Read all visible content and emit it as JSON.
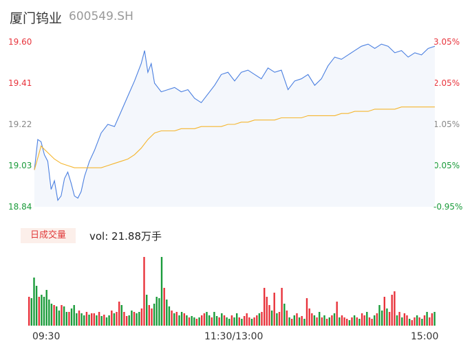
{
  "header": {
    "name": "厦门钨业",
    "code": "600549.SH"
  },
  "colors": {
    "up": "#e8333b",
    "down": "#1a9b3a",
    "price_line": "#4a7fe0",
    "avg_line": "#f5b52c",
    "fill": "#f4f7fc",
    "neutral": "#888888"
  },
  "volume_panel": {
    "badge": "日成交量",
    "readout": "vol: 21.88万手"
  },
  "chart_data": [
    {
      "type": "line",
      "title": "",
      "y_left_ticks": [
        "19.60",
        "19.41",
        "19.22",
        "19.03",
        "18.84"
      ],
      "y_right_ticks": [
        "3.05%",
        "2.05%",
        "1.05%",
        "0.05%",
        "-0.95%"
      ],
      "x_tick_labels": [
        "09:30",
        "11:30/13:00",
        "15:00"
      ],
      "ylim": [
        18.84,
        19.6
      ],
      "series": [
        {
          "name": "",
          "x": [
            0,
            2,
            4,
            6,
            8,
            10,
            12,
            14,
            16,
            18,
            20,
            22,
            24,
            26,
            28,
            30,
            33,
            36,
            40,
            44,
            48,
            52,
            56,
            60,
            64,
            66,
            68,
            70,
            72,
            76,
            80,
            84,
            88,
            92,
            96,
            100,
            104,
            108,
            112,
            116,
            120,
            124,
            128,
            132,
            136,
            140,
            144,
            148,
            152,
            156,
            160,
            164,
            168,
            172,
            176,
            180,
            184,
            188,
            192,
            196,
            200,
            204,
            208,
            212,
            216,
            220,
            224,
            228,
            232,
            236,
            240
          ],
          "values": [
            19.01,
            19.15,
            19.14,
            19.08,
            19.05,
            18.92,
            18.96,
            18.87,
            18.89,
            18.97,
            19.0,
            18.95,
            18.89,
            18.88,
            18.91,
            18.98,
            19.05,
            19.1,
            19.18,
            19.22,
            19.21,
            19.28,
            19.35,
            19.42,
            19.5,
            19.56,
            19.46,
            19.5,
            19.41,
            19.37,
            19.38,
            19.39,
            19.37,
            19.38,
            19.34,
            19.32,
            19.36,
            19.4,
            19.45,
            19.46,
            19.42,
            19.46,
            19.47,
            19.45,
            19.43,
            19.48,
            19.46,
            19.47,
            19.38,
            19.42,
            19.43,
            19.45,
            19.4,
            19.43,
            19.49,
            19.53,
            19.52,
            19.54,
            19.56,
            19.58,
            19.59,
            19.57,
            19.59,
            19.58,
            19.55,
            19.56,
            19.53,
            19.55,
            19.54,
            19.57,
            19.58
          ]
        },
        {
          "name": "",
          "x": [
            0,
            4,
            8,
            12,
            16,
            20,
            24,
            28,
            32,
            36,
            40,
            44,
            48,
            52,
            56,
            60,
            64,
            68,
            72,
            76,
            80,
            84,
            88,
            92,
            96,
            100,
            104,
            108,
            112,
            116,
            120,
            124,
            128,
            132,
            136,
            140,
            144,
            148,
            152,
            156,
            160,
            164,
            168,
            172,
            176,
            180,
            184,
            188,
            192,
            196,
            200,
            204,
            208,
            212,
            216,
            220,
            224,
            228,
            232,
            236,
            240
          ],
          "values": [
            19.01,
            19.12,
            19.09,
            19.06,
            19.04,
            19.03,
            19.02,
            19.02,
            19.02,
            19.02,
            19.02,
            19.03,
            19.04,
            19.05,
            19.06,
            19.08,
            19.11,
            19.15,
            19.18,
            19.19,
            19.19,
            19.19,
            19.2,
            19.2,
            19.2,
            19.21,
            19.21,
            19.21,
            19.21,
            19.22,
            19.22,
            19.23,
            19.23,
            19.24,
            19.24,
            19.24,
            19.24,
            19.25,
            19.25,
            19.25,
            19.25,
            19.26,
            19.26,
            19.26,
            19.26,
            19.26,
            19.27,
            19.27,
            19.28,
            19.28,
            19.28,
            19.29,
            19.29,
            19.29,
            19.29,
            19.3,
            19.3,
            19.3,
            19.3,
            19.3,
            19.3
          ]
        }
      ]
    },
    {
      "type": "bar",
      "title": "",
      "values": [
        42,
        40,
        70,
        58,
        42,
        45,
        42,
        52,
        38,
        32,
        30,
        28,
        22,
        30,
        28,
        20,
        20,
        25,
        30,
        18,
        22,
        18,
        15,
        20,
        16,
        18,
        18,
        15,
        20,
        14,
        16,
        12,
        15,
        22,
        18,
        20,
        35,
        30,
        20,
        14,
        15,
        22,
        20,
        18,
        20,
        25,
        100,
        45,
        30,
        25,
        32,
        42,
        40,
        100,
        55,
        38,
        28,
        22,
        18,
        20,
        15,
        20,
        18,
        15,
        12,
        14,
        12,
        10,
        12,
        15,
        18,
        20,
        15,
        12,
        20,
        14,
        12,
        18,
        15,
        12,
        10,
        15,
        12,
        18,
        12,
        10,
        14,
        18,
        12,
        10,
        12,
        15,
        18,
        20,
        55,
        42,
        30,
        22,
        48,
        18,
        20,
        55,
        32,
        22,
        12,
        10,
        15,
        18,
        12,
        14,
        10,
        40,
        25,
        18,
        15,
        12,
        20,
        12,
        15,
        10,
        12,
        15,
        18,
        35,
        12,
        15,
        12,
        10,
        8,
        12,
        15,
        12,
        10,
        18,
        15,
        20,
        12,
        10,
        15,
        18,
        30,
        22,
        42,
        25,
        20,
        45,
        50,
        15,
        20,
        12,
        18,
        15,
        10,
        8,
        12,
        15,
        12,
        10,
        15,
        20,
        12,
        18,
        20
      ],
      "directions": [
        1,
        0,
        0,
        0,
        1,
        0,
        0,
        0,
        0,
        0,
        1,
        0,
        0,
        1,
        0,
        0,
        1,
        0,
        0,
        0,
        1,
        0,
        0,
        1,
        0,
        1,
        1,
        0,
        1,
        0,
        1,
        0,
        0,
        1,
        0,
        1,
        1,
        0,
        1,
        1,
        0,
        0,
        1,
        0,
        0,
        1,
        1,
        0,
        1,
        1,
        0,
        0,
        0,
        0,
        1,
        0,
        0,
        1,
        0,
        1,
        0,
        0,
        1,
        0,
        1,
        0,
        0,
        1,
        0,
        1,
        1,
        0,
        0,
        1,
        0,
        0,
        1,
        0,
        1,
        0,
        0,
        1,
        0,
        0,
        1,
        0,
        1,
        1,
        1,
        0,
        1,
        1,
        0,
        1,
        1,
        1,
        1,
        0,
        1,
        0,
        1,
        1,
        0,
        1,
        0,
        1,
        0,
        1,
        0,
        1,
        0,
        1,
        1,
        1,
        0,
        1,
        0,
        1,
        0,
        1,
        0,
        1,
        0,
        1,
        0,
        1,
        1,
        1,
        0,
        1,
        0,
        1,
        0,
        1,
        1,
        0,
        1,
        1,
        0,
        1,
        0,
        0,
        1,
        0,
        1,
        1,
        1,
        0,
        1,
        0,
        1,
        1,
        0,
        1,
        1,
        0,
        1,
        0,
        1,
        0,
        1,
        1,
        0
      ]
    }
  ]
}
